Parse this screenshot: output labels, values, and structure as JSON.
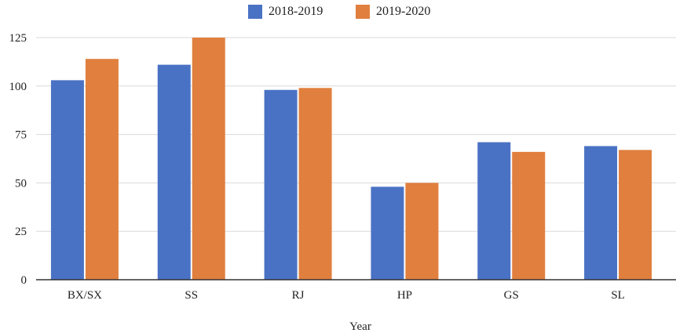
{
  "chart_data": {
    "type": "bar",
    "categories": [
      "BX/SX",
      "SS",
      "RJ",
      "HP",
      "GS",
      "SL"
    ],
    "series": [
      {
        "name": "2018-2019",
        "color": "#4a72c4",
        "values": [
          103,
          111,
          98,
          48,
          71,
          69
        ]
      },
      {
        "name": "2019-2020",
        "color": "#e07f3e",
        "values": [
          114,
          125,
          99,
          50,
          66,
          67
        ]
      }
    ],
    "title": "",
    "xlabel": "Year",
    "ylabel": "",
    "ylim": [
      0,
      125
    ],
    "yticks": [
      "0",
      "25",
      "50",
      "75",
      "100",
      "125"
    ],
    "grid": true,
    "legend_position": "top-center"
  }
}
